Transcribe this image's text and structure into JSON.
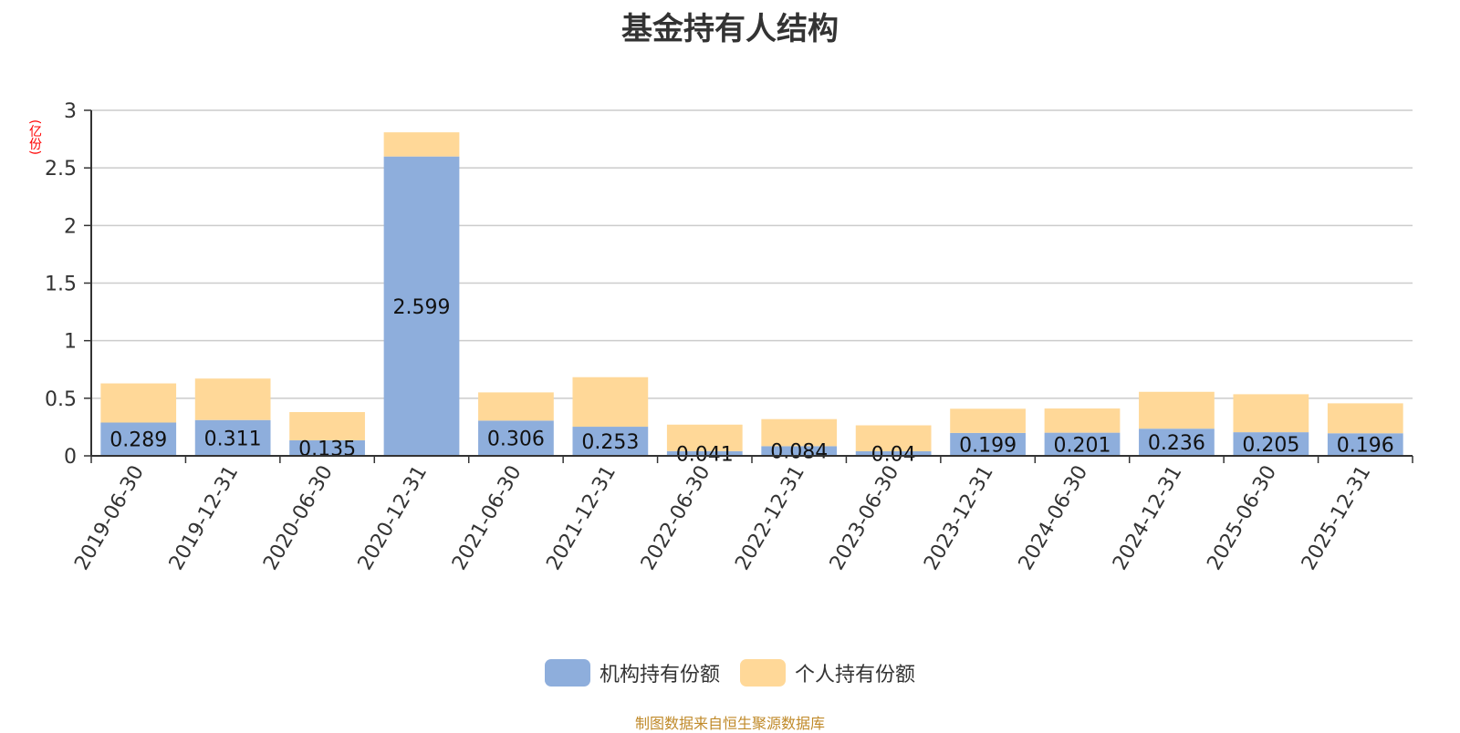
{
  "chart_data": {
    "type": "bar",
    "stacked": true,
    "title": "基金持有人结构",
    "unit": "(亿份)",
    "categories": [
      "2019-06-30",
      "2019-12-31",
      "2020-06-30",
      "2020-12-31",
      "2021-06-30",
      "2021-12-31",
      "2022-06-30",
      "2022-12-31",
      "2023-06-30",
      "2023-12-31",
      "2024-06-30",
      "2024-12-31",
      "2025-06-30",
      "2025-12-31"
    ],
    "ylim": [
      0,
      3
    ],
    "yticks": [
      "0",
      "0.5",
      "1",
      "1.5",
      "2",
      "2.5",
      "3"
    ],
    "grid": true,
    "legend_position": "bottom",
    "series": [
      {
        "name": "机构持有份额",
        "color": "#8eaedc",
        "values": [
          0.289,
          0.311,
          0.135,
          2.599,
          0.306,
          0.253,
          0.041,
          0.084,
          0.04,
          0.199,
          0.201,
          0.236,
          0.205,
          0.196
        ],
        "labels": [
          "0.289",
          "0.311",
          "0.135",
          "2.599",
          "0.306",
          "0.253",
          "0.041",
          "0.084",
          "0.04",
          "0.199",
          "0.201",
          "0.236",
          "0.205",
          "0.196"
        ]
      },
      {
        "name": "个人持有份额",
        "color": "#ffd898",
        "values": [
          0.34,
          0.36,
          0.245,
          0.21,
          0.245,
          0.43,
          0.23,
          0.235,
          0.225,
          0.21,
          0.21,
          0.32,
          0.33,
          0.26
        ]
      }
    ]
  },
  "footer": {
    "source": "制图数据来自恒生聚源数据库"
  }
}
